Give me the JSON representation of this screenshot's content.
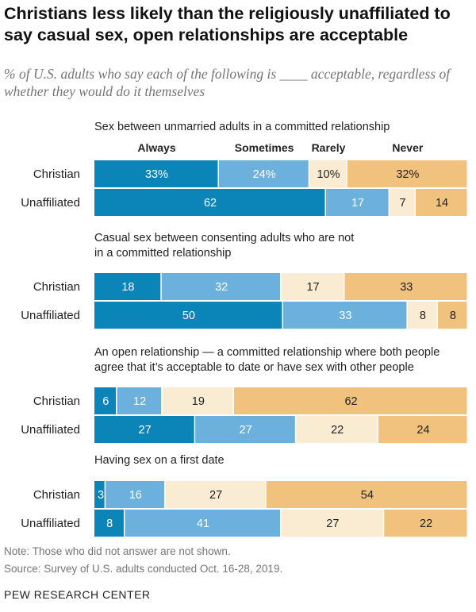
{
  "header": {
    "title": "Christians less likely than the religiously unaffiliated to say casual sex, open relationships are acceptable",
    "subtitle": "% of U.S. adults who say each of the following is ____ acceptable, regardless of whether they would do it themselves"
  },
  "chart_data": {
    "type": "bar",
    "orientation": "horizontal",
    "stacked": true,
    "legend": [
      "Always",
      "Sometimes",
      "Rarely",
      "Never"
    ],
    "colors": [
      "#0b84b8",
      "#6cb1dd",
      "#faecd2",
      "#f1c27d"
    ],
    "label_colors": [
      "#ffffff",
      "#ffffff",
      "#222222",
      "#222222"
    ],
    "groups": [
      {
        "question": [
          "Sex between unmarried adults in a committed relationship"
        ],
        "rows": [
          {
            "label": "Christian",
            "values": [
              33,
              24,
              10,
              32
            ],
            "labels": [
              "33%",
              "24%",
              "10%",
              "32%"
            ]
          },
          {
            "label": "Unaffiliated",
            "values": [
              62,
              17,
              7,
              14
            ],
            "labels": [
              "62",
              "17",
              "7",
              "14"
            ]
          }
        ]
      },
      {
        "question": [
          "Casual sex between consenting adults who are not",
          "in a committed relationship"
        ],
        "rows": [
          {
            "label": "Christian",
            "values": [
              18,
              32,
              17,
              33
            ],
            "labels": [
              "18",
              "32",
              "17",
              "33"
            ]
          },
          {
            "label": "Unaffiliated",
            "values": [
              50,
              33,
              8,
              8
            ],
            "labels": [
              "50",
              "33",
              "8",
              "8"
            ]
          }
        ]
      },
      {
        "question": [
          "An open relationship — a committed relationship where both people",
          "agree that it’s acceptable to date or have sex with other people"
        ],
        "rows": [
          {
            "label": "Christian",
            "values": [
              6,
              12,
              19,
              62
            ],
            "labels": [
              "6",
              "12",
              "19",
              "62"
            ]
          },
          {
            "label": "Unaffiliated",
            "values": [
              27,
              27,
              22,
              24
            ],
            "labels": [
              "27",
              "27",
              "22",
              "24"
            ]
          }
        ]
      },
      {
        "question": [
          "Having sex on a first date"
        ],
        "rows": [
          {
            "label": "Christian",
            "values": [
              3,
              16,
              27,
              54
            ],
            "labels": [
              "3",
              "16",
              "27",
              "54"
            ]
          },
          {
            "label": "Unaffiliated",
            "values": [
              8,
              41,
              27,
              22
            ],
            "labels": [
              "8",
              "41",
              "27",
              "22"
            ]
          }
        ]
      }
    ]
  },
  "footer": {
    "note": "Note: Those who did not answer are not shown.",
    "source": "Source: Survey of U.S. adults conducted Oct. 16-28, 2019.",
    "brand": "PEW RESEARCH CENTER"
  }
}
